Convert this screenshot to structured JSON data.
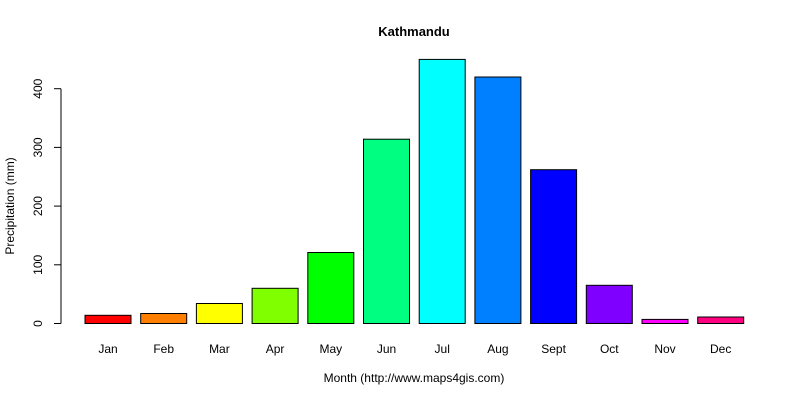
{
  "chart_data": {
    "type": "bar",
    "title": "Kathmandu",
    "xlabel": "Month (http://www.maps4gis.com)",
    "ylabel": "Precipitation (mm)",
    "categories": [
      "Jan",
      "Feb",
      "Mar",
      "Apr",
      "May",
      "Jun",
      "Jul",
      "Aug",
      "Sept",
      "Oct",
      "Nov",
      "Dec"
    ],
    "values": [
      14,
      17,
      34,
      60,
      121,
      314,
      450,
      420,
      262,
      65,
      7,
      11
    ],
    "colors": [
      "#FF0000",
      "#FF8000",
      "#FFFF00",
      "#80FF00",
      "#00FF00",
      "#00FF80",
      "#00FFFF",
      "#0080FF",
      "#0000FF",
      "#8000FF",
      "#FF00FF",
      "#FF0080"
    ],
    "ylim": [
      0,
      450
    ],
    "yticks": [
      0,
      100,
      200,
      300,
      400
    ],
    "grid": false,
    "legend": "none"
  }
}
